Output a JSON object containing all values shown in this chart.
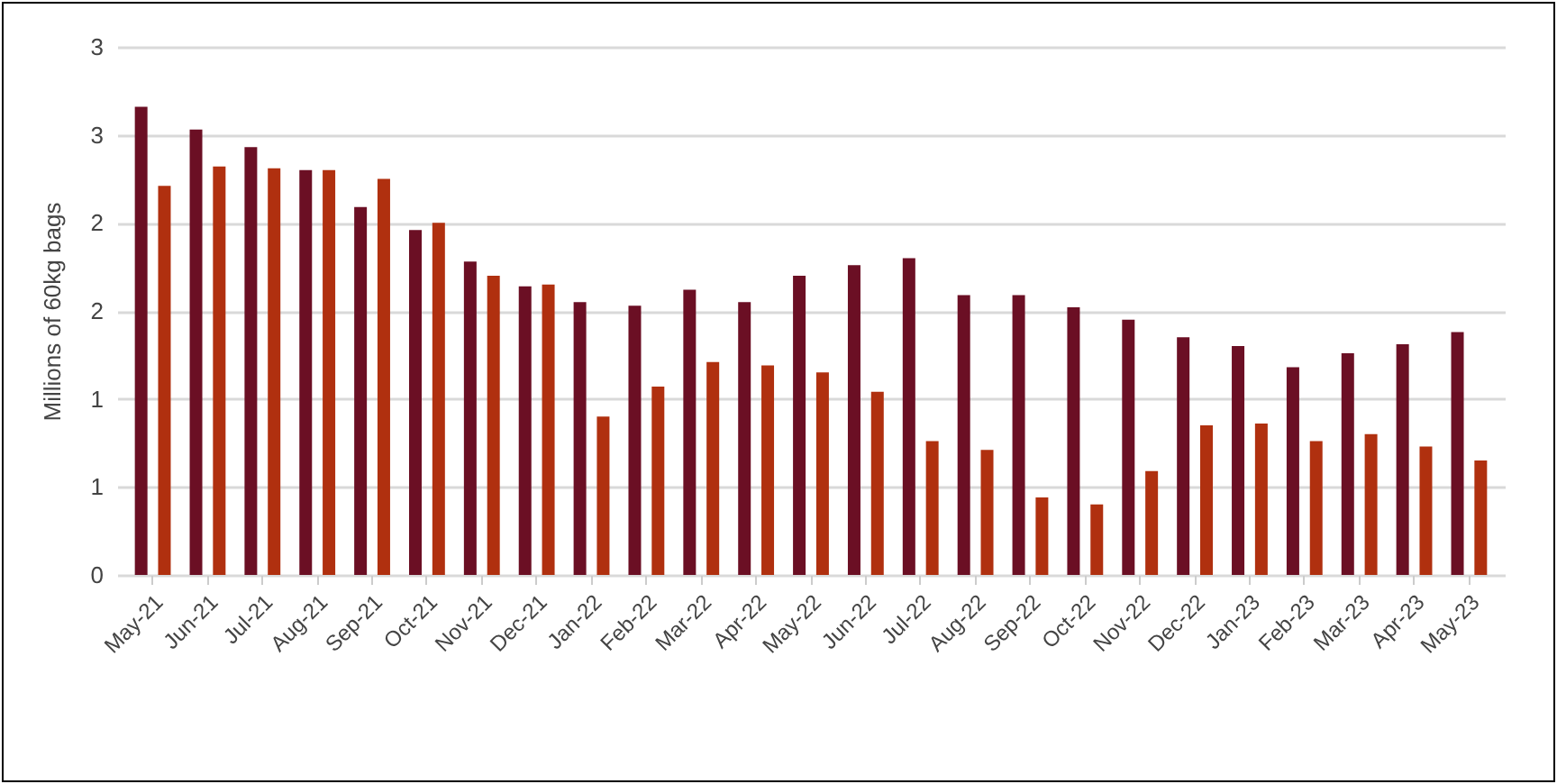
{
  "chart_data": {
    "type": "bar",
    "ylabel": "Millions of 60kg bags",
    "categories": [
      "May-21",
      "Jun-21",
      "Jul-21",
      "Aug-21",
      "Sep-21",
      "Oct-21",
      "Nov-21",
      "Dec-21",
      "Jan-22",
      "Feb-22",
      "Mar-22",
      "Apr-22",
      "May-22",
      "Jun-22",
      "Jul-22",
      "Aug-22",
      "Sep-22",
      "Oct-22",
      "Nov-22",
      "Dec-22",
      "Jan-23",
      "Feb-23",
      "Mar-23",
      "Apr-23",
      "May-23"
    ],
    "series": [
      {
        "color": "#6b0f24",
        "values": [
          2.66,
          2.53,
          2.43,
          2.3,
          2.09,
          1.96,
          1.78,
          1.64,
          1.55,
          1.53,
          1.62,
          1.55,
          1.7,
          1.76,
          1.8,
          1.59,
          1.59,
          1.52,
          1.45,
          1.35,
          1.3,
          1.18,
          1.26,
          1.31,
          1.38
        ]
      },
      {
        "color": "#b0300f",
        "values": [
          2.21,
          2.32,
          2.31,
          2.3,
          2.25,
          2.0,
          1.7,
          1.65,
          0.9,
          1.07,
          1.21,
          1.19,
          1.15,
          1.04,
          0.76,
          0.71,
          0.44,
          0.4,
          0.59,
          0.85,
          0.86,
          0.76,
          0.8,
          0.73,
          0.65
        ]
      }
    ],
    "ylim": [
      0,
      3
    ],
    "yticks": [
      0,
      {
        "value": 0.5,
        "label": "1"
      },
      1,
      {
        "value": 1.5,
        "label": "2"
      },
      2,
      {
        "value": 2.5,
        "label": "3"
      },
      3
    ],
    "grid": "y"
  }
}
